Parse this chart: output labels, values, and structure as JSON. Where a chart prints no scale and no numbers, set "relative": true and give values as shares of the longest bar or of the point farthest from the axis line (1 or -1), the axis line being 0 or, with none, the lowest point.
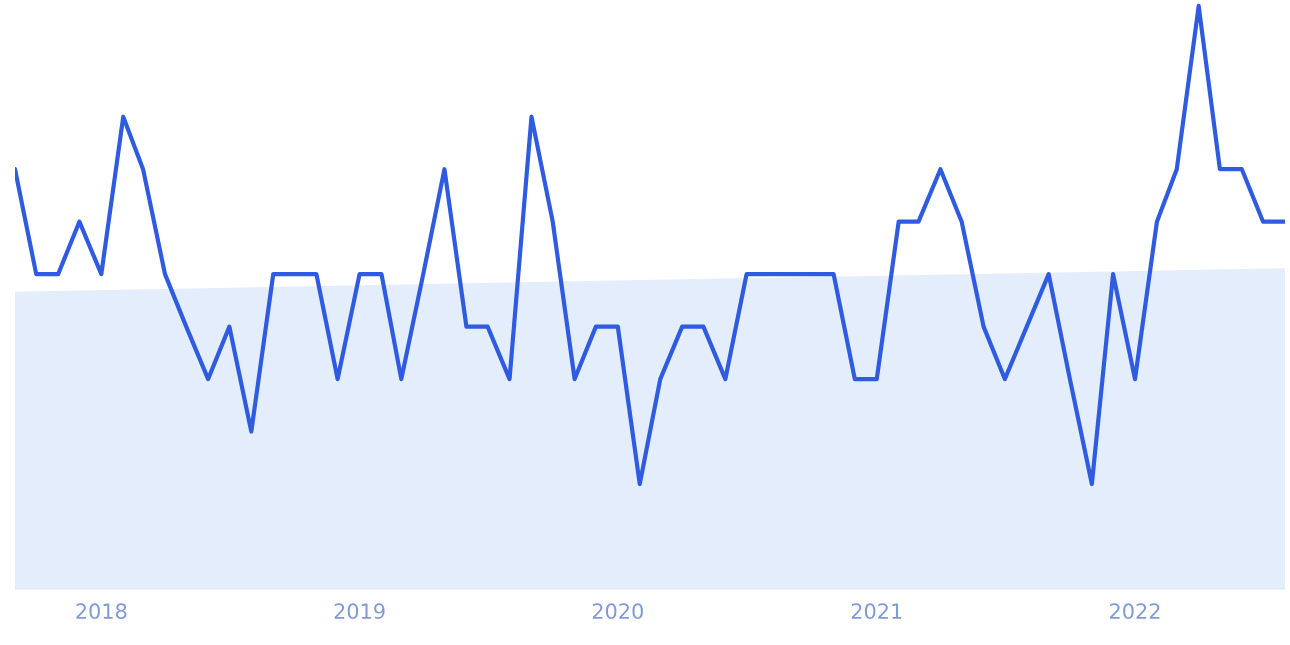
{
  "chart_data": {
    "type": "line",
    "relative": true,
    "x": [
      "2017-09",
      "2017-10",
      "2017-11",
      "2017-12",
      "2018-01",
      "2018-02",
      "2018-03",
      "2018-04",
      "2018-05",
      "2018-06",
      "2018-07",
      "2018-08",
      "2018-09",
      "2018-10",
      "2018-11",
      "2018-12",
      "2019-01",
      "2019-02",
      "2019-03",
      "2019-04",
      "2019-05",
      "2019-06",
      "2019-07",
      "2019-08",
      "2019-09",
      "2019-10",
      "2019-11",
      "2019-12",
      "2020-01",
      "2020-02",
      "2020-03",
      "2020-04",
      "2020-05",
      "2020-06",
      "2020-07",
      "2020-08",
      "2020-09",
      "2020-10",
      "2020-11",
      "2020-12",
      "2021-01",
      "2021-02",
      "2021-03",
      "2021-04",
      "2021-05",
      "2021-06",
      "2021-07",
      "2021-08",
      "2021-09",
      "2021-10",
      "2021-11",
      "2021-12",
      "2022-01",
      "2022-02",
      "2022-03",
      "2022-04",
      "2022-05",
      "2022-06",
      "2022-07",
      "2022-08"
    ],
    "series": [
      {
        "color": "#2f5be0",
        "values": [
          0.72,
          0.54,
          0.54,
          0.63,
          0.54,
          0.81,
          0.72,
          0.54,
          0.45,
          0.36,
          0.45,
          0.27,
          0.54,
          0.54,
          0.54,
          0.36,
          0.54,
          0.54,
          0.36,
          0.54,
          0.72,
          0.45,
          0.45,
          0.36,
          0.81,
          0.63,
          0.36,
          0.45,
          0.45,
          0.18,
          0.36,
          0.45,
          0.45,
          0.36,
          0.54,
          0.54,
          0.54,
          0.54,
          0.54,
          0.36,
          0.36,
          0.63,
          0.63,
          0.72,
          0.63,
          0.45,
          0.36,
          0.45,
          0.54,
          0.36,
          0.18,
          0.54,
          0.36,
          0.63,
          0.72,
          1,
          0.72,
          0.72,
          0.63,
          0.63
        ]
      },
      {
        "type": "area",
        "color": "#e3edfb",
        "x": [
          "2017-09",
          "2022-08"
        ],
        "values": [
          0.51,
          0.55
        ]
      }
    ],
    "xlim": [
      "2017-09",
      "2022-08"
    ],
    "xticks": [
      {
        "value": "2018-01",
        "label": "2018"
      },
      {
        "value": "2019-01",
        "label": "2019"
      },
      {
        "value": "2020-01",
        "label": "2020"
      },
      {
        "value": "2021-01",
        "label": "2021"
      },
      {
        "value": "2022-01",
        "label": "2022"
      }
    ],
    "tick_labels": "x"
  }
}
